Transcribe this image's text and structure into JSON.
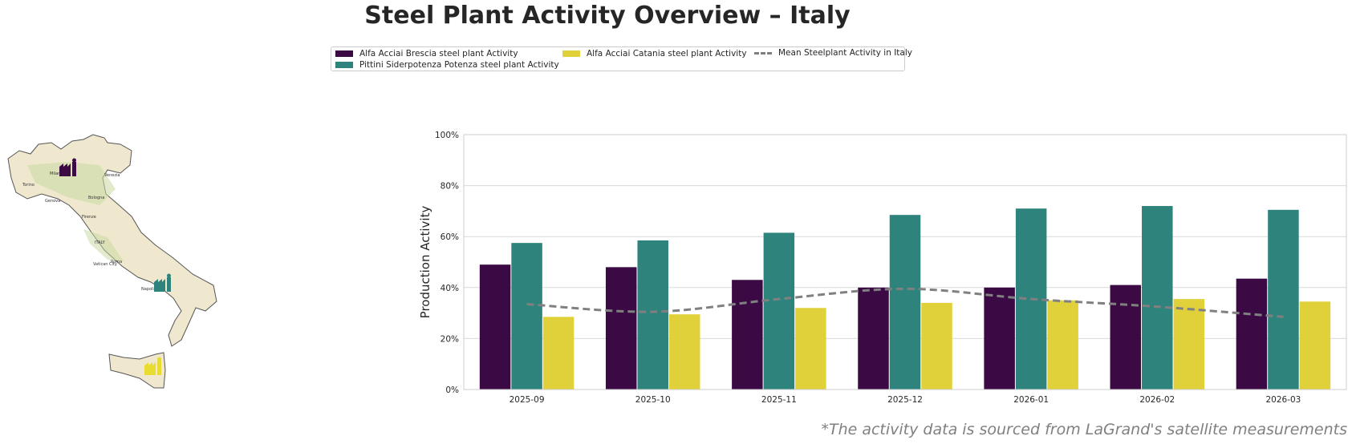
{
  "title": "Steel Plant Activity Overview – Italy",
  "footnote": "*The activity data is sourced from LaGrand's satellite measurements",
  "map": {
    "labels": [
      "Milano",
      "Torino",
      "Genova",
      "Bologna",
      "Firenze",
      "ITALY",
      "Roma",
      "Napoli",
      "Vatican City",
      "Venezia"
    ],
    "plant_icon": "factory-icon"
  },
  "chart_data": {
    "type": "bar",
    "categories": [
      "2025-09",
      "2025-10",
      "2025-11",
      "2025-12",
      "2026-01",
      "2026-02",
      "2026-03"
    ],
    "series": [
      {
        "name": "Alfa Acciai Brescia steel plant Activity",
        "color": "#3b0a45",
        "values": [
          49,
          48,
          43,
          40,
          40,
          41,
          43.5
        ]
      },
      {
        "name": "Pittini Siderpotenza Potenza steel plant Activity",
        "color": "#2e837c",
        "values": [
          57.5,
          58.5,
          61.5,
          68.5,
          71,
          72,
          70.5
        ]
      },
      {
        "name": "Alfa Acciai Catania steel plant Activity",
        "color": "#e0d13a",
        "values": [
          28.5,
          29.5,
          32,
          34,
          35,
          35.5,
          34.5
        ]
      }
    ],
    "mean_line": {
      "name": "Mean Steelplant Activity in Italy",
      "color": "#808080",
      "values": [
        33.5,
        30.5,
        35.5,
        39.5,
        35.5,
        32.5,
        28.5
      ]
    },
    "ylabel": "Production Activity",
    "xlabel": "",
    "ylim": [
      0,
      100
    ],
    "yticks": [
      "0%",
      "20%",
      "40%",
      "60%",
      "80%",
      "100%"
    ],
    "grid": true,
    "legend_position": "top-center"
  }
}
